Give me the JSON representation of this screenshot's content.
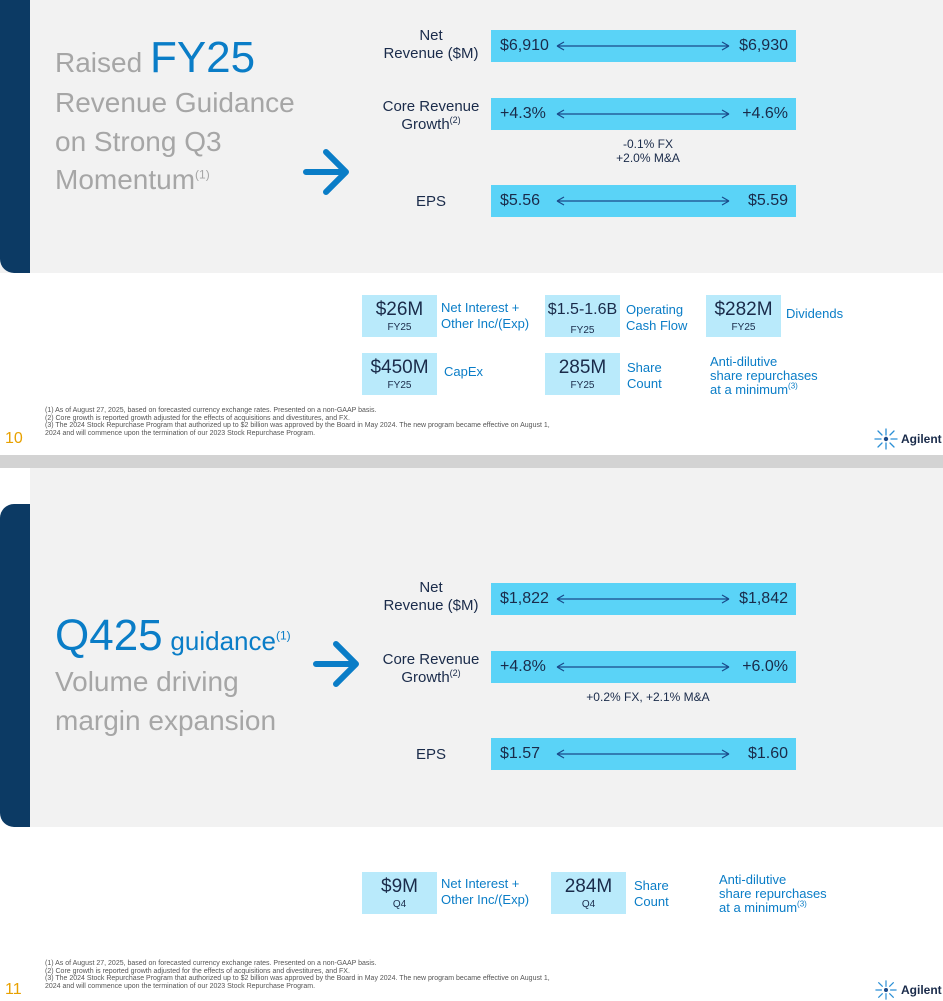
{
  "slide10": {
    "title": {
      "raised_word": "Raised",
      "fy_label": "FY25",
      "line2": "Revenue Guidance",
      "line3": "on Strong Q3",
      "line4": "Momentum",
      "line4_footnote": "(1)"
    },
    "guidance": [
      {
        "label_line1": "Net",
        "label_line2": "Revenue ($M)",
        "low": "$6,910",
        "high": "$6,930"
      },
      {
        "label_line1": "Core Revenue",
        "label_line2": "Growth",
        "label_footnote": "(2)",
        "low": "+4.3%",
        "high": "+4.6%"
      },
      {
        "label_line1": "EPS",
        "low": "$5.56",
        "high": "$5.59"
      }
    ],
    "growth_note_line1": "-0.1% FX",
    "growth_note_line2": "+2.0% M&A",
    "tiles": [
      {
        "value": "$26M",
        "period": "FY25",
        "label_line1": "Net Interest +",
        "label_line2": "Other Inc/(Exp)"
      },
      {
        "value": "$1.5-1.6B",
        "period": "FY25",
        "label_line1": "Operating",
        "label_line2": "Cash Flow"
      },
      {
        "value": "$282M",
        "period": "FY25",
        "label_line1": "Dividends"
      },
      {
        "value": "$450M",
        "period": "FY25",
        "label_line1": "CapEx"
      },
      {
        "value": "285M",
        "period": "FY25",
        "label_line1": "Share",
        "label_line2": "Count"
      }
    ],
    "anti_dilutive": {
      "line1": "Anti-dilutive",
      "line2": "share repurchases",
      "line3": "at a minimum",
      "footnote": "(3)"
    },
    "footnotes": [
      "(1)  As of August 27, 2025, based on forecasted currency exchange rates. Presented on a non-GAAP basis.",
      "(2)  Core growth is reported growth adjusted for the effects of acquisitions and divestitures, and FX.",
      "(3)  The 2024 Stock Repurchase Program that authorized up to $2 billion was approved by the Board in May 2024. The new program became effective on August 1, 2024 and will commence upon the termination of our 2023 Stock Repurchase Program."
    ],
    "page_number": "10",
    "logo_text": "Agilent"
  },
  "slide11": {
    "title": {
      "q_label": "Q425",
      "guidance_word": "guidance",
      "guidance_footnote": "(1)",
      "line2": "Volume driving",
      "line3": "margin expansion"
    },
    "guidance": [
      {
        "label_line1": "Net",
        "label_line2": "Revenue ($M)",
        "low": "$1,822",
        "high": "$1,842"
      },
      {
        "label_line1": "Core Revenue",
        "label_line2": "Growth",
        "label_footnote": "(2)",
        "low": "+4.8%",
        "high": "+6.0%"
      },
      {
        "label_line1": "EPS",
        "low": "$1.57",
        "high": "$1.60"
      }
    ],
    "growth_note": "+0.2% FX, +2.1% M&A",
    "tiles": [
      {
        "value": "$9M",
        "period": "Q4",
        "label_line1": "Net Interest +",
        "label_line2": "Other Inc/(Exp)"
      },
      {
        "value": "284M",
        "period": "Q4",
        "label_line1": "Share",
        "label_line2": "Count"
      }
    ],
    "anti_dilutive": {
      "line1": "Anti-dilutive",
      "line2": "share repurchases",
      "line3": "at a minimum",
      "footnote": "(3)"
    },
    "footnotes": [
      "(1)  As of August 27, 2025, based on forecasted currency exchange rates. Presented on a non-GAAP basis.",
      "(2)  Core growth is reported growth adjusted for the effects of acquisitions and divestitures, and FX.",
      "(3)  The 2024 Stock Repurchase Program that authorized up to $2 billion was approved by the Board in May 2024. The new program became effective on August 1, 2024 and will commence upon the termination of our 2023 Stock Repurchase Program."
    ],
    "page_number": "11",
    "logo_text": "Agilent"
  },
  "colors": {
    "accent_navy": "#0c3a64",
    "brand_blue": "#0a7dc7",
    "bar_cyan": "#5ad3f7",
    "tile_light": "#b9eafb",
    "title_gray": "#a6a6a6",
    "page_number_orange": "#e8a100"
  },
  "icons": [
    "right-arrow-icon",
    "double-headed-arrow-icon",
    "agilent-spark-icon"
  ]
}
